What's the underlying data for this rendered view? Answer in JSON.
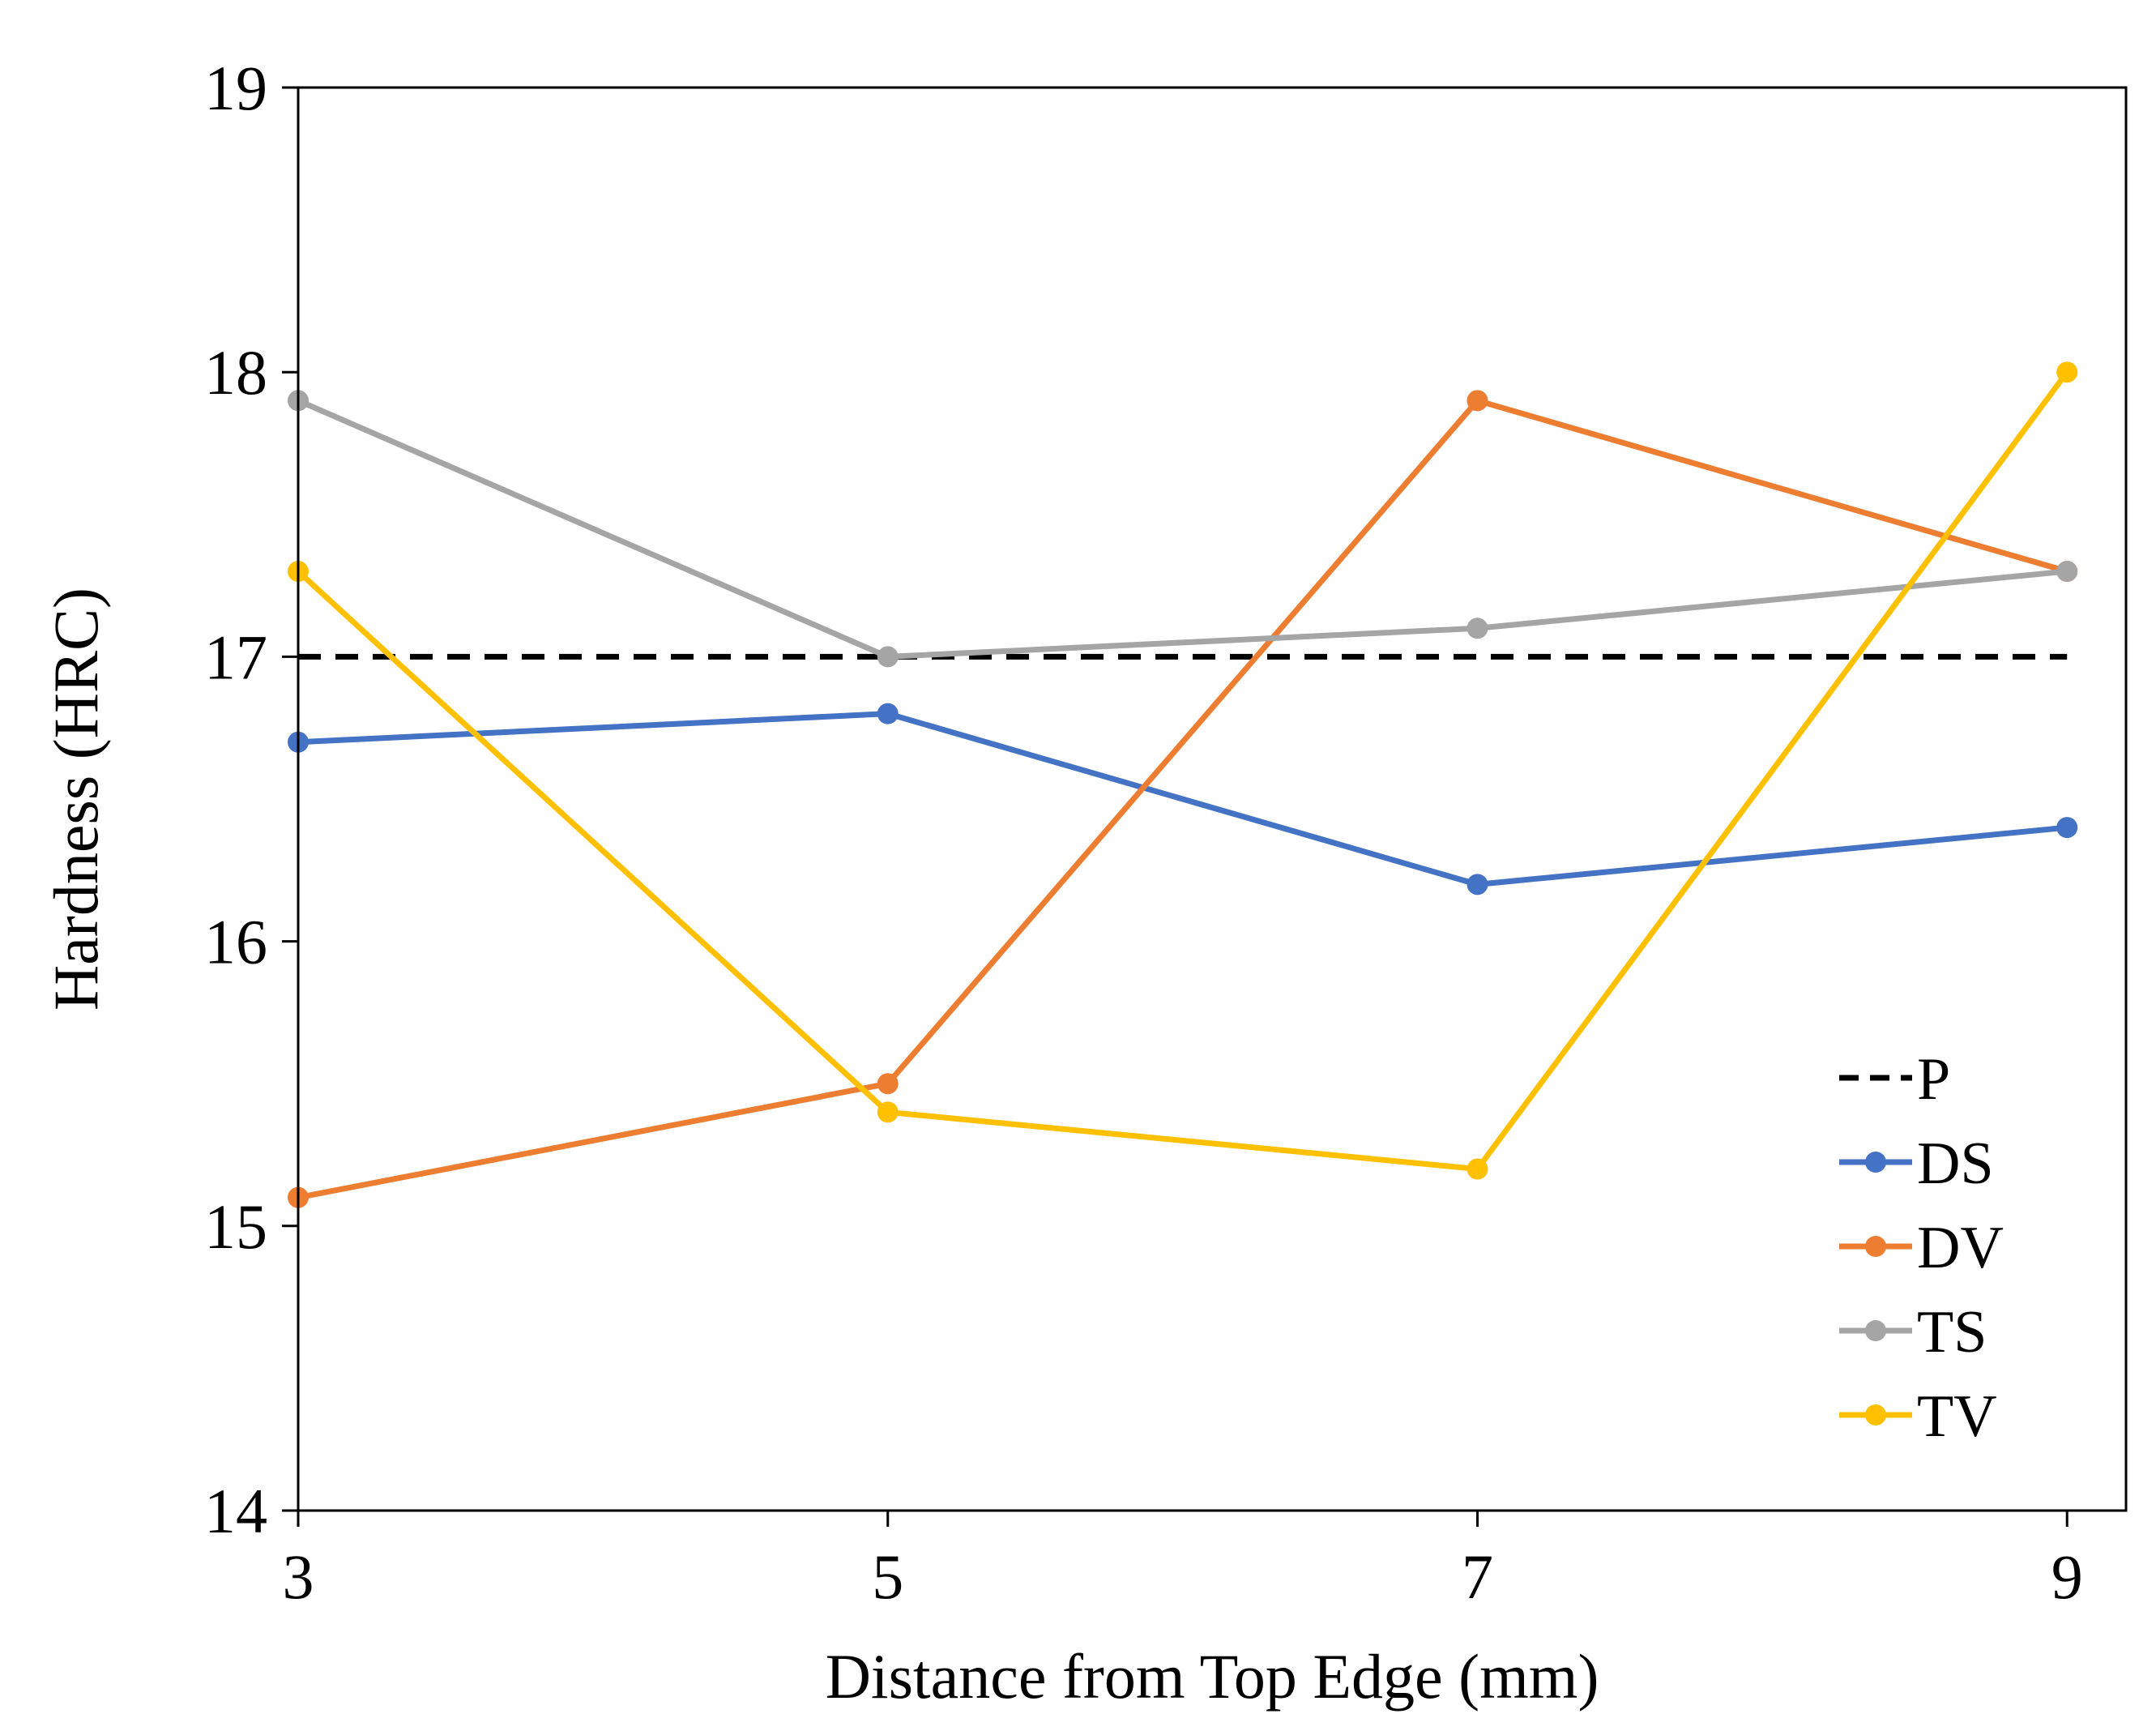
{
  "chart_data": {
    "type": "line",
    "title": "",
    "xlabel": "Distance from Top Edge (mm)",
    "ylabel": "Hardness (HRC)",
    "x": [
      3,
      5,
      7,
      9
    ],
    "xlim": [
      3,
      9.2
    ],
    "ylim": [
      14,
      19
    ],
    "xticks": [
      "3",
      "5",
      "7",
      "9"
    ],
    "yticks": [
      "14",
      "15",
      "16",
      "17",
      "18",
      "19"
    ],
    "grid": false,
    "legend_position": "bottom-right",
    "series": [
      {
        "name": "P",
        "color": "#000000",
        "dashed": true,
        "markers": false,
        "values": [
          17.0,
          17.0,
          17.0,
          17.0
        ]
      },
      {
        "name": "DS",
        "color": "#4472C4",
        "dashed": false,
        "markers": true,
        "values": [
          16.7,
          16.8,
          16.2,
          16.4
        ]
      },
      {
        "name": "DV",
        "color": "#ED7D31",
        "dashed": false,
        "markers": true,
        "values": [
          15.1,
          15.5,
          17.9,
          17.3
        ]
      },
      {
        "name": "TS",
        "color": "#A5A5A5",
        "dashed": false,
        "markers": true,
        "values": [
          17.9,
          17.0,
          17.1,
          17.3
        ]
      },
      {
        "name": "TV",
        "color": "#FFC000",
        "dashed": false,
        "markers": true,
        "values": [
          17.3,
          15.4,
          15.2,
          18.0
        ]
      }
    ]
  }
}
